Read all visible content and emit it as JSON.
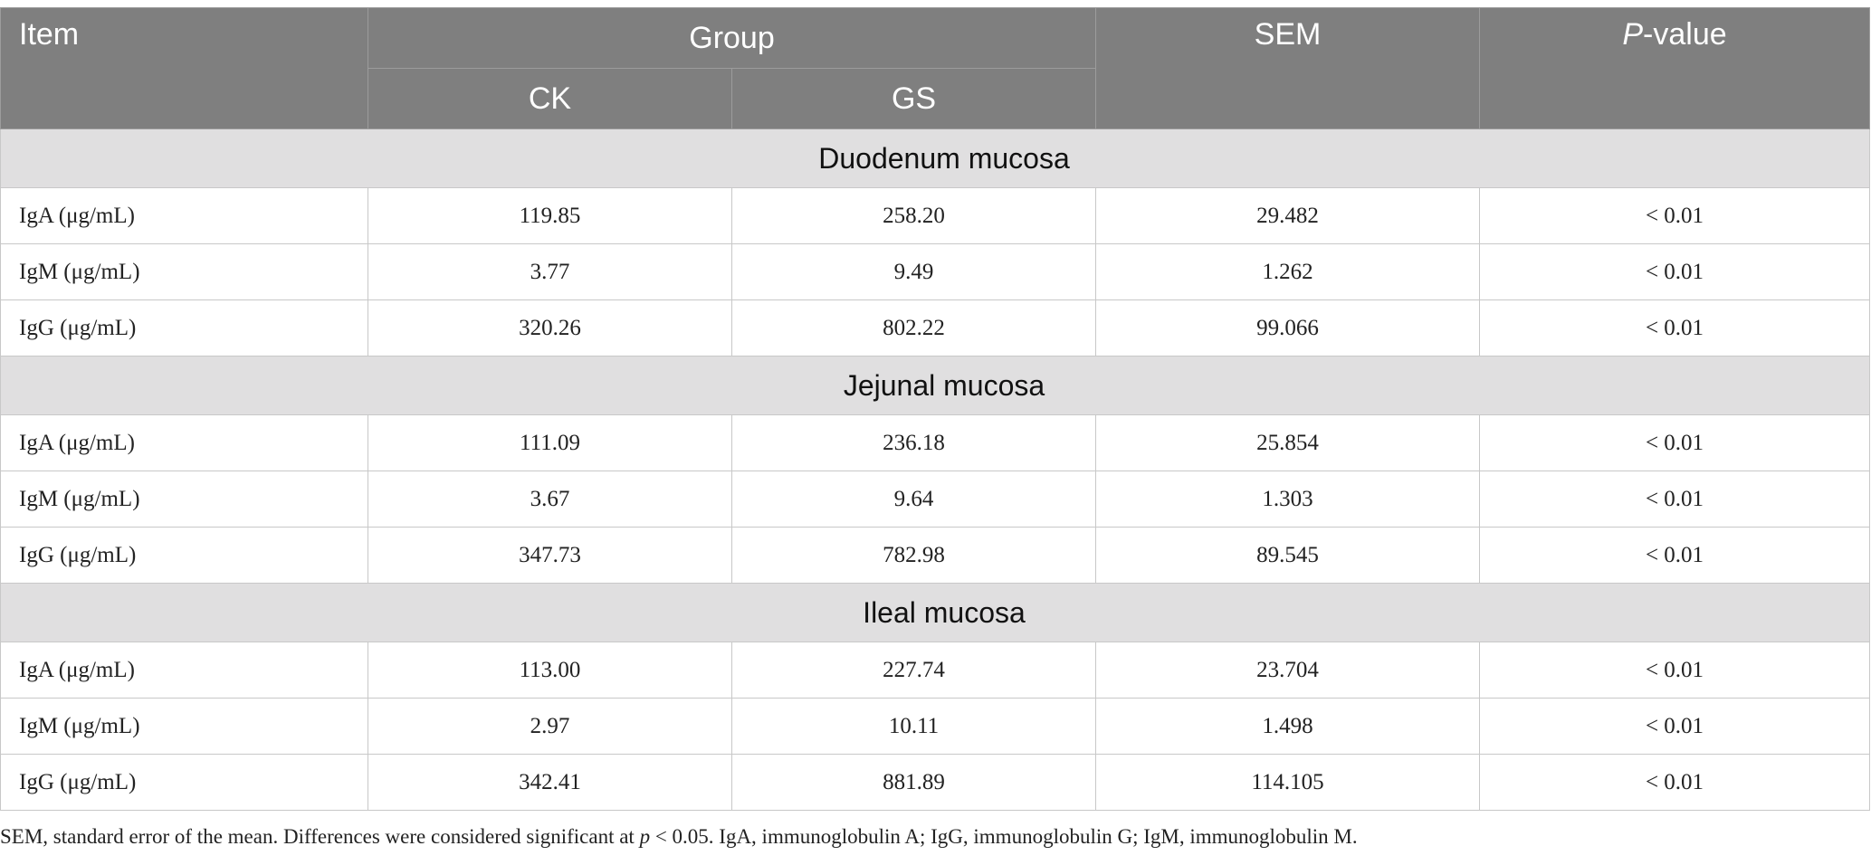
{
  "header": {
    "item": "Item",
    "group": "Group",
    "ck": "CK",
    "gs": "GS",
    "sem": "SEM",
    "p_italic": "P",
    "p_rest": "-value"
  },
  "sections": [
    {
      "title": "Duodenum mucosa",
      "rows": [
        {
          "label": "IgA (μg/mL)",
          "ck": "119.85",
          "gs": "258.20",
          "sem": "29.482",
          "p": "< 0.01"
        },
        {
          "label": "IgM (μg/mL)",
          "ck": "3.77",
          "gs": "9.49",
          "sem": "1.262",
          "p": "< 0.01"
        },
        {
          "label": "IgG (μg/mL)",
          "ck": "320.26",
          "gs": "802.22",
          "sem": "99.066",
          "p": "< 0.01"
        }
      ]
    },
    {
      "title": "Jejunal mucosa",
      "rows": [
        {
          "label": "IgA (μg/mL)",
          "ck": "111.09",
          "gs": "236.18",
          "sem": "25.854",
          "p": "< 0.01"
        },
        {
          "label": "IgM (μg/mL)",
          "ck": "3.67",
          "gs": "9.64",
          "sem": "1.303",
          "p": "< 0.01"
        },
        {
          "label": "IgG (μg/mL)",
          "ck": "347.73",
          "gs": "782.98",
          "sem": "89.545",
          "p": "< 0.01"
        }
      ]
    },
    {
      "title": "Ileal mucosa",
      "rows": [
        {
          "label": "IgA (μg/mL)",
          "ck": "113.00",
          "gs": "227.74",
          "sem": "23.704",
          "p": "< 0.01"
        },
        {
          "label": "IgM (μg/mL)",
          "ck": "2.97",
          "gs": "10.11",
          "sem": "1.498",
          "p": "< 0.01"
        },
        {
          "label": "IgG (μg/mL)",
          "ck": "342.41",
          "gs": "881.89",
          "sem": "114.105",
          "p": "< 0.01"
        }
      ]
    }
  ],
  "footnote": {
    "part1": "SEM, standard error of the mean. Differences were considered significant at ",
    "p_italic": "p",
    "part2": " < 0.05. IgA, immunoglobulin A; IgG, immunoglobulin G; IgM, immunoglobulin M."
  }
}
